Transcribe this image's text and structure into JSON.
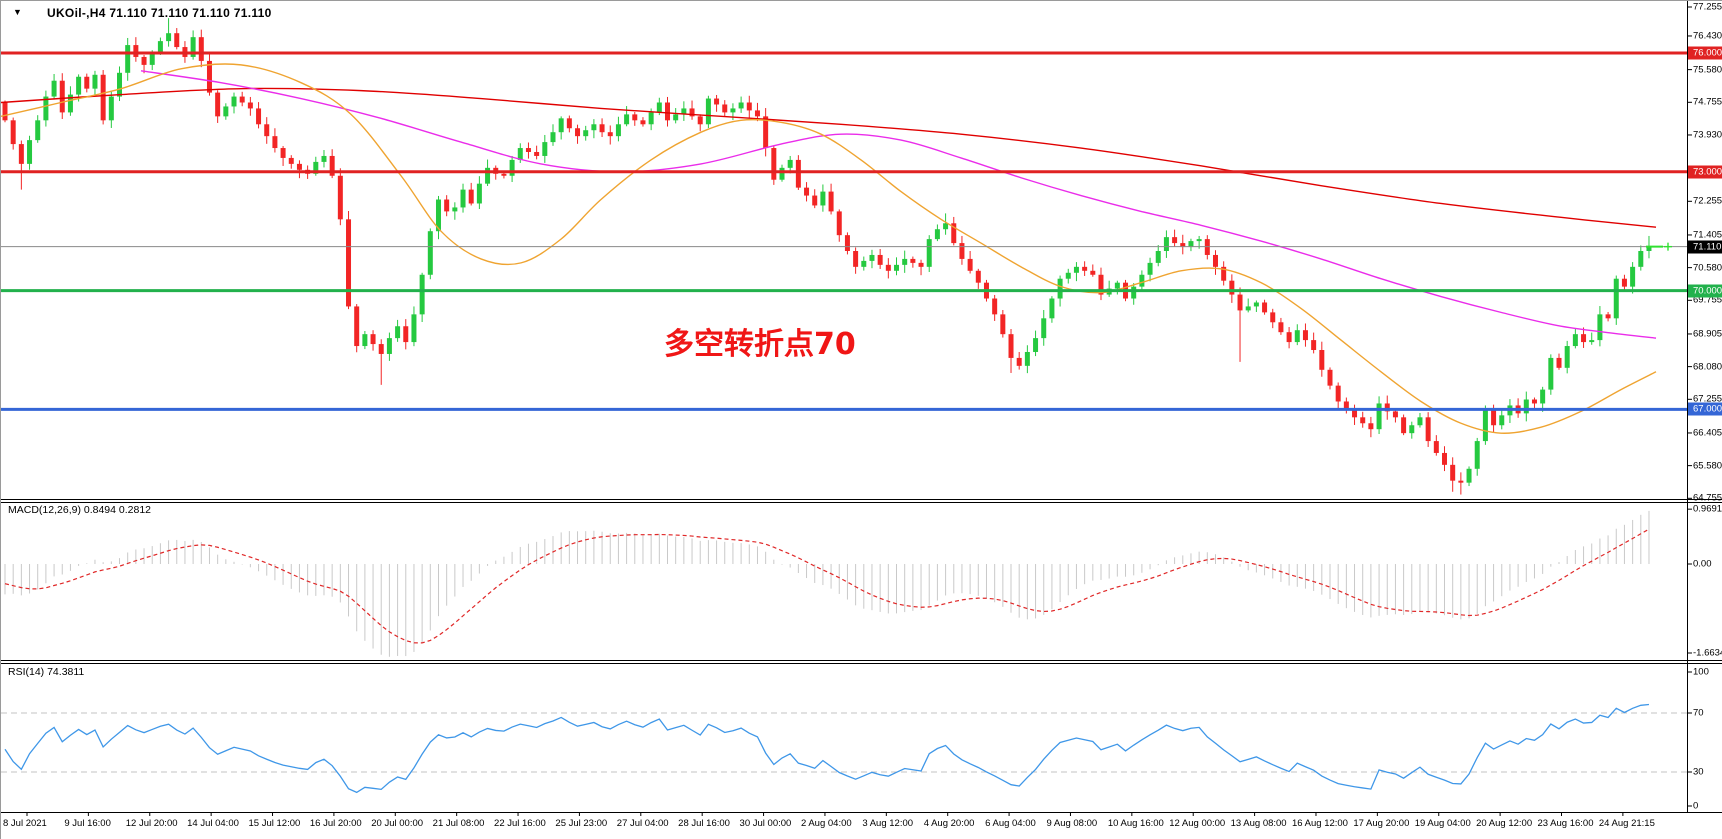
{
  "window": {
    "title_text": "UKOil-,H4  71.110 71.110 71.110 71.110",
    "title_symbol": "UKOil-,H4",
    "title_quotes": "71.110 71.110 71.110 71.110"
  },
  "annotation": {
    "text": "多空转折点70",
    "color": "#f01616"
  },
  "panels": {
    "macd": {
      "label": "MACD(12,26,9) 0.8494 0.2812",
      "axis_labels": [
        "0.9691",
        "0.00",
        "-1.6634"
      ],
      "axis_values": [
        0.9691,
        0,
        -1.6634
      ]
    },
    "rsi": {
      "label": "RSI(14) 74.3811",
      "axis_labels": [
        "100",
        "70",
        "30",
        "0"
      ],
      "axis_values": [
        100,
        70,
        30,
        0
      ],
      "levels": [
        70,
        30
      ]
    }
  },
  "price_axis": {
    "ticks": [
      "77.255",
      "76.430",
      "75.580",
      "74.755",
      "73.930",
      "72.255",
      "71.405",
      "70.580",
      "69.755",
      "68.905",
      "68.080",
      "67.255",
      "66.405",
      "65.580",
      "64.755"
    ],
    "badges": [
      {
        "text": "76.000",
        "price": 76.0,
        "bg": "#e02222",
        "fg": "#ffffff"
      },
      {
        "text": "73.000",
        "price": 73.0,
        "bg": "#e02222",
        "fg": "#ffffff"
      },
      {
        "text": "71.110",
        "price": 71.11,
        "bg": "#000000",
        "fg": "#ffffff"
      },
      {
        "text": "70.000",
        "price": 70.0,
        "bg": "#22b14c",
        "fg": "#ffffff"
      },
      {
        "text": "67.000",
        "price": 67.0,
        "bg": "#3466d6",
        "fg": "#ffffff"
      }
    ]
  },
  "time_axis": {
    "labels": [
      "8 Jul 2021",
      "9 Jul 16:00",
      "12 Jul 20:00",
      "14 Jul 04:00",
      "15 Jul 12:00",
      "16 Jul 20:00",
      "20 Jul 00:00",
      "21 Jul 08:00",
      "22 Jul 16:00",
      "25 Jul 23:00",
      "27 Jul 04:00",
      "28 Jul 16:00",
      "30 Jul 00:00",
      "2 Aug 04:00",
      "3 Aug 12:00",
      "4 Aug 20:00",
      "6 Aug 04:00",
      "9 Aug 08:00",
      "10 Aug 16:00",
      "12 Aug 00:00",
      "13 Aug 08:00",
      "16 Aug 12:00",
      "17 Aug 20:00",
      "19 Aug 04:00",
      "20 Aug 12:00",
      "23 Aug 16:00",
      "24 Aug 21:15"
    ]
  },
  "chart_data": {
    "type": "candlestick",
    "symbol": "UKOil-",
    "timeframe": "H4",
    "current_price": 71.11,
    "y_axis_range": [
      64.755,
      77.255
    ],
    "grid": false,
    "first_open": 74.75,
    "closes": [
      74.3,
      73.7,
      73.2,
      73.8,
      74.3,
      74.9,
      75.3,
      74.5,
      74.95,
      75.4,
      75.1,
      75.45,
      74.3,
      74.9,
      75.5,
      76.2,
      75.9,
      75.7,
      76.0,
      76.3,
      76.5,
      76.15,
      75.9,
      76.4,
      75.8,
      75.0,
      74.4,
      74.65,
      74.9,
      74.75,
      74.6,
      74.2,
      73.9,
      73.6,
      73.35,
      73.2,
      73.05,
      72.95,
      73.25,
      73.4,
      72.9,
      71.8,
      69.6,
      68.6,
      68.9,
      68.65,
      68.4,
      68.8,
      69.1,
      68.7,
      69.4,
      70.4,
      71.5,
      72.3,
      72.0,
      72.1,
      72.55,
      72.2,
      72.7,
      73.1,
      72.95,
      72.9,
      73.3,
      73.6,
      73.5,
      73.4,
      73.75,
      74.0,
      74.35,
      74.1,
      73.9,
      74.05,
      74.2,
      74.0,
      73.9,
      74.2,
      74.45,
      74.3,
      74.2,
      74.5,
      74.75,
      74.3,
      74.45,
      74.6,
      74.4,
      74.2,
      74.85,
      74.7,
      74.5,
      74.6,
      74.75,
      74.55,
      74.4,
      73.6,
      72.8,
      73.1,
      73.3,
      72.6,
      72.4,
      72.15,
      72.5,
      72.0,
      71.4,
      71.0,
      70.6,
      70.75,
      70.9,
      70.65,
      70.5,
      70.65,
      70.8,
      70.7,
      70.6,
      71.3,
      71.55,
      71.7,
      71.2,
      70.8,
      70.5,
      70.2,
      69.8,
      69.4,
      68.9,
      68.3,
      68.1,
      68.45,
      68.8,
      69.3,
      69.8,
      70.3,
      70.45,
      70.6,
      70.5,
      70.4,
      69.9,
      70.05,
      70.2,
      69.8,
      70.1,
      70.4,
      70.7,
      71.0,
      71.35,
      71.2,
      71.1,
      71.25,
      71.3,
      70.9,
      70.6,
      70.25,
      69.9,
      69.5,
      69.6,
      69.7,
      69.45,
      69.2,
      68.95,
      68.7,
      69.0,
      68.75,
      68.5,
      68.0,
      67.6,
      67.2,
      67.0,
      66.8,
      66.65,
      66.5,
      67.15,
      66.95,
      66.8,
      66.4,
      66.6,
      66.8,
      66.2,
      65.9,
      65.6,
      65.2,
      65.15,
      65.5,
      66.2,
      67.0,
      66.6,
      66.85,
      67.1,
      66.9,
      67.25,
      67.15,
      67.5,
      68.3,
      68.05,
      68.6,
      68.9,
      68.7,
      68.75,
      69.4,
      69.3,
      70.3,
      70.1,
      70.6,
      71.0,
      71.11
    ],
    "wick_overrides": {
      "2": {
        "low": 72.55
      },
      "20": {
        "high": 76.88
      },
      "46": {
        "low": 67.62
      },
      "115": {
        "high": 71.95
      },
      "123": {
        "low": 67.92
      },
      "151": {
        "low": 68.2
      },
      "177": {
        "low": 64.92
      },
      "178": {
        "low": 64.85
      },
      "201": {
        "high": 71.38
      }
    },
    "candle_colors": {
      "bull": "#25c940",
      "bear": "#f22525"
    },
    "horizontal_lines": [
      {
        "price": 76.0,
        "color": "#e02222",
        "width": 3
      },
      {
        "price": 73.0,
        "color": "#e02222",
        "width": 3
      },
      {
        "price": 70.0,
        "color": "#22b14c",
        "width": 3
      },
      {
        "price": 67.0,
        "color": "#3466d6",
        "width": 3
      }
    ],
    "price_line": {
      "price": 71.11,
      "color": "#8a8a8a",
      "marker_color": "#30e030"
    },
    "ma_lines": [
      {
        "name": "ma-slow-red",
        "color": "#e00000",
        "points": [
          [
            0,
            74.75
          ],
          [
            120,
            74.95
          ],
          [
            240,
            75.1
          ],
          [
            360,
            75.05
          ],
          [
            480,
            74.85
          ],
          [
            600,
            74.6
          ],
          [
            720,
            74.4
          ],
          [
            840,
            74.2
          ],
          [
            960,
            73.95
          ],
          [
            1080,
            73.6
          ],
          [
            1200,
            73.15
          ],
          [
            1320,
            72.65
          ],
          [
            1440,
            72.2
          ],
          [
            1560,
            71.85
          ],
          [
            1655,
            71.6
          ]
        ]
      },
      {
        "name": "ma-mid-magenta",
        "color": "#ea2dea",
        "points": [
          [
            140,
            75.55
          ],
          [
            220,
            75.25
          ],
          [
            300,
            74.85
          ],
          [
            380,
            74.35
          ],
          [
            460,
            73.75
          ],
          [
            540,
            73.2
          ],
          [
            620,
            73.0
          ],
          [
            700,
            73.2
          ],
          [
            780,
            73.7
          ],
          [
            840,
            73.95
          ],
          [
            900,
            73.8
          ],
          [
            960,
            73.35
          ],
          [
            1020,
            72.85
          ],
          [
            1080,
            72.4
          ],
          [
            1140,
            72.0
          ],
          [
            1200,
            71.65
          ],
          [
            1260,
            71.25
          ],
          [
            1320,
            70.8
          ],
          [
            1380,
            70.3
          ],
          [
            1440,
            69.85
          ],
          [
            1500,
            69.45
          ],
          [
            1560,
            69.1
          ],
          [
            1620,
            68.9
          ],
          [
            1655,
            68.8
          ]
        ]
      },
      {
        "name": "ma-fast-orange",
        "color": "#efa431",
        "points": [
          [
            0,
            74.4
          ],
          [
            60,
            74.75
          ],
          [
            120,
            75.1
          ],
          [
            180,
            75.6
          ],
          [
            240,
            75.7
          ],
          [
            300,
            75.25
          ],
          [
            350,
            74.45
          ],
          [
            400,
            72.9
          ],
          [
            440,
            71.5
          ],
          [
            480,
            70.8
          ],
          [
            520,
            70.7
          ],
          [
            560,
            71.3
          ],
          [
            600,
            72.3
          ],
          [
            650,
            73.3
          ],
          [
            700,
            74.0
          ],
          [
            740,
            74.3
          ],
          [
            780,
            74.25
          ],
          [
            820,
            73.95
          ],
          [
            860,
            73.3
          ],
          [
            900,
            72.5
          ],
          [
            940,
            71.8
          ],
          [
            980,
            71.2
          ],
          [
            1020,
            70.6
          ],
          [
            1060,
            70.1
          ],
          [
            1100,
            69.95
          ],
          [
            1140,
            70.2
          ],
          [
            1180,
            70.5
          ],
          [
            1220,
            70.55
          ],
          [
            1260,
            70.2
          ],
          [
            1300,
            69.55
          ],
          [
            1340,
            68.75
          ],
          [
            1380,
            67.95
          ],
          [
            1420,
            67.2
          ],
          [
            1460,
            66.65
          ],
          [
            1500,
            66.4
          ],
          [
            1540,
            66.55
          ],
          [
            1580,
            66.95
          ],
          [
            1620,
            67.5
          ],
          [
            1655,
            67.95
          ]
        ]
      }
    ],
    "indicators": {
      "macd": {
        "fast": 12,
        "slow": 26,
        "signal": 9,
        "macd_value": 0.8494,
        "signal_value": 0.2812,
        "histogram_color": "#c9c9c9",
        "signal_color": "#e02828",
        "axis_max": 0.9691,
        "axis_min": -1.6634
      },
      "rsi": {
        "period": 14,
        "value": 74.3811,
        "color": "#3f97e8",
        "level_color": "#c3c3c3"
      }
    }
  }
}
